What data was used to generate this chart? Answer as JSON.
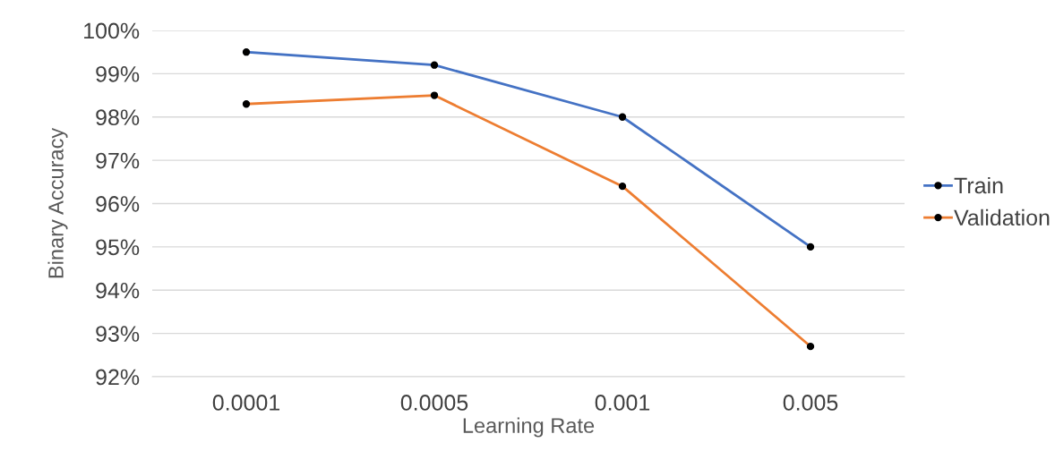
{
  "chart_data": {
    "type": "line",
    "xlabel": "Learning Rate",
    "ylabel": "Binary Accuracy",
    "categories": [
      "0.0001",
      "0.0005",
      "0.001",
      "0.005"
    ],
    "series": [
      {
        "name": "Train",
        "color": "#4472c4",
        "values": [
          99.5,
          99.2,
          98.0,
          95.0
        ]
      },
      {
        "name": "Validation",
        "color": "#ed7d31",
        "values": [
          98.3,
          98.5,
          96.4,
          92.7
        ]
      }
    ],
    "ylim": [
      92,
      100
    ],
    "yticks": [
      {
        "value": 92,
        "label": "92%"
      },
      {
        "value": 93,
        "label": "93%"
      },
      {
        "value": 94,
        "label": "94%"
      },
      {
        "value": 95,
        "label": "95%"
      },
      {
        "value": 96,
        "label": "96%"
      },
      {
        "value": 97,
        "label": "97%"
      },
      {
        "value": 98,
        "label": "98%"
      },
      {
        "value": 99,
        "label": "99%"
      },
      {
        "value": 100,
        "label": "100%"
      }
    ],
    "grid": "y",
    "legend": "right",
    "marker": "circle",
    "line_style": "solid"
  }
}
